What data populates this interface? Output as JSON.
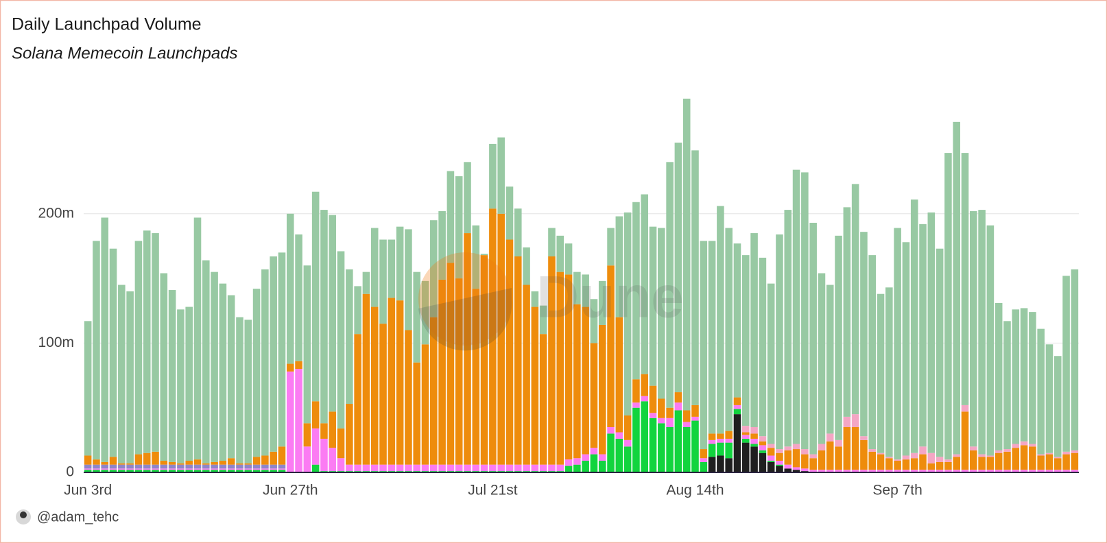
{
  "chart_data": {
    "type": "stacked_bar",
    "title": "Daily Launchpad Volume",
    "subtitle": "Solana Memecoin Launchpads",
    "author": "@adam_tehc",
    "watermark": "Dune",
    "categories": [
      "Jun 3rd",
      null,
      null,
      null,
      null,
      null,
      null,
      null,
      null,
      null,
      null,
      null,
      null,
      null,
      null,
      null,
      null,
      null,
      null,
      null,
      null,
      null,
      null,
      null,
      "Jun 27th",
      null,
      null,
      null,
      null,
      null,
      null,
      null,
      null,
      null,
      null,
      null,
      null,
      null,
      null,
      null,
      null,
      null,
      null,
      null,
      null,
      null,
      null,
      null,
      "Jul 21st",
      null,
      null,
      null,
      null,
      null,
      null,
      null,
      null,
      null,
      null,
      null,
      null,
      null,
      null,
      null,
      null,
      null,
      null,
      null,
      null,
      null,
      null,
      null,
      "Aug 14th",
      null,
      null,
      null,
      null,
      null,
      null,
      null,
      null,
      null,
      null,
      null,
      null,
      null,
      null,
      null,
      null,
      null,
      null,
      null,
      null,
      null,
      null,
      null,
      "Sep 7th",
      null,
      null,
      null,
      null,
      null,
      null,
      null,
      null,
      null,
      null,
      null,
      null,
      null,
      null,
      null,
      null,
      null,
      null,
      null,
      null,
      null
    ],
    "ylim": [
      0,
      290
    ],
    "yticks": [
      0,
      {
        "value": 100,
        "label": "100m"
      },
      {
        "value": 200,
        "label": "200m"
      }
    ],
    "grid": true,
    "series": [
      {
        "color": "#1f1f1f",
        "values": [
          0,
          0,
          0,
          0,
          0,
          0,
          0,
          0,
          0,
          0,
          0,
          0,
          0,
          0,
          0,
          0,
          0,
          0,
          0,
          0,
          0,
          0,
          0,
          0,
          0,
          0,
          0,
          0,
          0,
          0,
          0,
          0,
          0,
          0,
          0,
          0,
          0,
          0,
          0,
          0,
          0,
          0,
          0,
          0,
          0,
          0,
          0,
          0,
          0,
          0,
          0,
          0,
          0,
          0,
          0,
          0,
          0,
          0,
          0,
          0,
          0,
          0,
          0,
          0,
          0,
          0,
          0,
          0,
          0,
          0,
          0,
          0,
          0,
          0,
          12,
          13,
          11,
          45,
          23,
          20,
          15,
          8,
          5,
          3,
          2,
          1,
          0,
          0,
          0,
          0,
          0,
          0,
          0,
          0,
          0,
          0,
          0,
          0,
          0,
          0,
          0,
          0,
          0,
          0,
          0,
          0,
          0,
          0,
          0,
          0,
          0,
          0,
          0,
          0,
          0,
          0,
          0,
          0
        ]
      },
      {
        "color": "#12d43e",
        "values": [
          2,
          2,
          2,
          2,
          2,
          2,
          2,
          2,
          2,
          2,
          2,
          2,
          2,
          2,
          2,
          2,
          2,
          2,
          2,
          2,
          2,
          2,
          2,
          2,
          0,
          0,
          0,
          6,
          1,
          1,
          1,
          1,
          1,
          1,
          1,
          1,
          1,
          1,
          1,
          1,
          1,
          1,
          1,
          1,
          1,
          1,
          1,
          1,
          1,
          1,
          1,
          1,
          1,
          1,
          1,
          1,
          1,
          5,
          6,
          9,
          14,
          9,
          30,
          26,
          20,
          50,
          55,
          42,
          38,
          35,
          48,
          35,
          40,
          8,
          10,
          10,
          12,
          4,
          3,
          2,
          2,
          1,
          1,
          0,
          0,
          0,
          0,
          0,
          0,
          0,
          0,
          0,
          0,
          0,
          0,
          0,
          0,
          0,
          0,
          0,
          0,
          0,
          0,
          0,
          0,
          0,
          0,
          0,
          0,
          0,
          0,
          0,
          0,
          0,
          0,
          0,
          0,
          0
        ]
      },
      {
        "color": "#fb7cf3",
        "values": [
          1,
          1,
          1,
          1,
          1,
          1,
          1,
          1,
          1,
          1,
          1,
          1,
          1,
          1,
          1,
          1,
          1,
          1,
          1,
          1,
          1,
          1,
          1,
          1,
          78,
          80,
          20,
          28,
          25,
          18,
          10,
          5,
          5,
          5,
          5,
          5,
          5,
          5,
          5,
          5,
          5,
          5,
          5,
          5,
          5,
          5,
          5,
          5,
          5,
          5,
          5,
          5,
          5,
          5,
          5,
          5,
          5,
          5,
          5,
          5,
          5,
          5,
          5,
          5,
          5,
          4,
          4,
          4,
          4,
          7,
          6,
          4,
          3,
          3,
          3,
          3,
          3,
          3,
          3,
          4,
          4,
          4,
          3,
          3,
          2,
          2,
          2,
          2,
          2,
          2,
          2,
          2,
          2,
          2,
          2,
          2,
          2,
          2,
          2,
          2,
          2,
          2,
          2,
          2,
          2,
          2,
          2,
          2,
          2,
          2,
          2,
          2,
          2,
          2,
          2,
          2,
          2,
          2
        ]
      },
      {
        "color": "#8f86c8",
        "values": [
          3,
          3,
          3,
          3,
          3,
          3,
          3,
          3,
          3,
          3,
          3,
          3,
          3,
          3,
          3,
          3,
          3,
          3,
          3,
          3,
          3,
          3,
          3,
          3,
          0,
          0,
          0,
          0,
          0,
          0,
          0,
          0,
          0,
          0,
          0,
          0,
          0,
          0,
          0,
          0,
          0,
          0,
          0,
          0,
          0,
          0,
          0,
          0,
          0,
          0,
          0,
          0,
          0,
          0,
          0,
          0,
          0,
          0,
          0,
          0,
          0,
          0,
          0,
          0,
          0,
          0,
          0,
          0,
          0,
          0,
          0,
          0,
          0,
          0,
          0,
          0,
          0,
          0,
          0,
          0,
          0,
          0,
          0,
          0,
          0,
          0,
          0,
          0,
          0,
          0,
          0,
          0,
          0,
          0,
          0,
          0,
          0,
          0,
          0,
          0,
          0,
          0,
          0,
          0,
          0,
          0,
          0,
          0,
          0,
          0,
          0,
          0,
          0,
          0,
          0,
          0,
          0,
          0
        ]
      },
      {
        "color": "#ee8c0c",
        "values": [
          7,
          4,
          2,
          6,
          1,
          1,
          8,
          9,
          10,
          3,
          2,
          1,
          3,
          4,
          1,
          2,
          3,
          5,
          1,
          1,
          6,
          7,
          10,
          14,
          6,
          6,
          18,
          21,
          12,
          28,
          23,
          47,
          101,
          132,
          122,
          109,
          129,
          127,
          104,
          79,
          93,
          114,
          143,
          156,
          144,
          179,
          136,
          162,
          198,
          194,
          174,
          161,
          139,
          122,
          101,
          161,
          149,
          143,
          119,
          114,
          81,
          100,
          125,
          89,
          19,
          18,
          17,
          21,
          15,
          8,
          8,
          9,
          9,
          7,
          5,
          4,
          6,
          6,
          2,
          4,
          3,
          6,
          6,
          11,
          14,
          11,
          9,
          15,
          22,
          18,
          33,
          33,
          23,
          14,
          12,
          9,
          7,
          8,
          9,
          12,
          5,
          6,
          6,
          10,
          45,
          15,
          10,
          10,
          13,
          14,
          17,
          19,
          18,
          11,
          12,
          9,
          12,
          13
        ]
      },
      {
        "color": "#f4a6c4",
        "values": [
          0,
          0,
          0,
          0,
          0,
          0,
          0,
          0,
          0,
          0,
          0,
          0,
          0,
          0,
          0,
          0,
          0,
          0,
          0,
          0,
          0,
          0,
          0,
          0,
          0,
          0,
          0,
          0,
          0,
          0,
          0,
          0,
          0,
          0,
          0,
          0,
          0,
          0,
          0,
          0,
          0,
          0,
          0,
          0,
          0,
          0,
          0,
          0,
          0,
          0,
          0,
          0,
          0,
          0,
          0,
          0,
          0,
          0,
          0,
          0,
          0,
          0,
          0,
          0,
          0,
          0,
          0,
          0,
          0,
          0,
          0,
          0,
          0,
          0,
          0,
          0,
          0,
          0,
          5,
          5,
          4,
          3,
          3,
          3,
          4,
          4,
          3,
          5,
          6,
          5,
          8,
          10,
          3,
          2,
          1,
          1,
          1,
          3,
          4,
          6,
          8,
          4,
          2,
          2,
          5,
          3,
          2,
          1,
          2,
          2,
          3,
          3,
          2,
          1,
          1,
          1,
          2,
          2
        ]
      },
      {
        "color": "#98c9a3",
        "values": [
          104,
          169,
          189,
          161,
          138,
          133,
          165,
          172,
          169,
          145,
          133,
          119,
          119,
          187,
          157,
          147,
          137,
          126,
          113,
          111,
          130,
          144,
          151,
          150,
          116,
          98,
          122,
          162,
          165,
          152,
          137,
          104,
          37,
          17,
          61,
          65,
          45,
          57,
          78,
          70,
          49,
          75,
          53,
          71,
          79,
          55,
          49,
          1,
          50,
          59,
          41,
          37,
          29,
          12,
          22,
          22,
          28,
          24,
          25,
          25,
          34,
          34,
          29,
          78,
          157,
          137,
          139,
          123,
          132,
          190,
          193,
          241,
          197,
          161,
          149,
          176,
          157,
          119,
          132,
          150,
          138,
          124,
          166,
          183,
          212,
          214,
          179,
          132,
          115,
          158,
          162,
          178,
          158,
          150,
          123,
          131,
          179,
          165,
          196,
          172,
          186,
          161,
          237,
          257,
          195,
          182,
          189,
          178,
          114,
          99,
          104,
          103,
          102,
          97,
          84,
          78,
          136,
          140
        ]
      }
    ]
  }
}
